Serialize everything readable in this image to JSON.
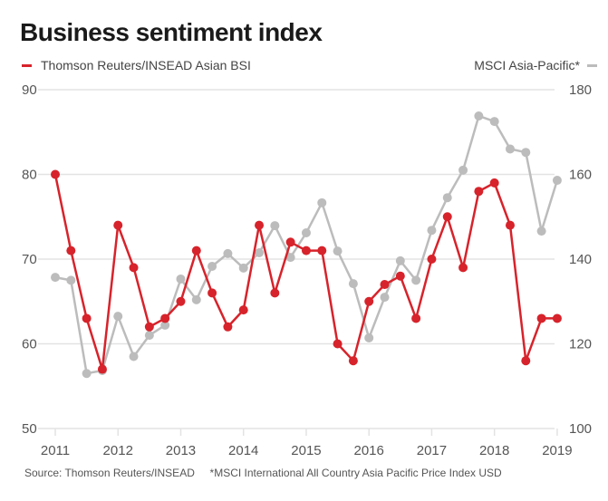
{
  "title": "Business sentiment index",
  "legend": {
    "left": {
      "label": "Thomson Reuters/INSEAD Asian BSI",
      "color": "#d7232b"
    },
    "right": {
      "label": "MSCI Asia-Pacific*",
      "color": "#bcbcbc"
    }
  },
  "footer": {
    "source": "Source: Thomson Reuters/INSEAD",
    "note": "*MSCI International All Country Asia Pacific Price Index USD"
  },
  "chart_data": {
    "type": "line",
    "title": "Business sentiment index",
    "xlabel": "",
    "ylabel_left": "Thomson Reuters/INSEAD Asian BSI",
    "ylabel_right": "MSCI Asia-Pacific*",
    "x_ticks": [
      "2011",
      "2012",
      "2013",
      "2014",
      "2015",
      "2016",
      "2017",
      "2018",
      "2019"
    ],
    "x": [
      "2011Q1",
      "2011Q2",
      "2011Q3",
      "2011Q4",
      "2012Q1",
      "2012Q2",
      "2012Q3",
      "2012Q4",
      "2013Q1",
      "2013Q2",
      "2013Q3",
      "2013Q4",
      "2014Q1",
      "2014Q2",
      "2014Q3",
      "2014Q4",
      "2015Q1",
      "2015Q2",
      "2015Q3",
      "2015Q4",
      "2016Q1",
      "2016Q2",
      "2016Q3",
      "2016Q4",
      "2017Q1",
      "2017Q2",
      "2017Q3",
      "2017Q4",
      "2018Q1",
      "2018Q2",
      "2018Q3",
      "2018Q4",
      "2019Q1"
    ],
    "ylim_left": [
      50,
      90
    ],
    "yticks_left": [
      50,
      60,
      70,
      80,
      90
    ],
    "ylim_right": [
      100,
      180
    ],
    "yticks_right": [
      100,
      120,
      140,
      160,
      180
    ],
    "grid": true,
    "legend": "top",
    "series": [
      {
        "name": "Thomson Reuters/INSEAD Asian BSI",
        "axis": "left",
        "color": "#d7232b",
        "values": [
          80,
          71,
          63,
          57,
          74,
          69,
          62,
          63,
          65,
          71,
          66,
          62,
          64,
          74,
          66,
          72,
          71,
          71,
          60,
          58,
          65,
          67,
          68,
          63,
          70,
          75,
          69,
          78,
          79,
          74,
          58,
          63,
          63
        ]
      },
      {
        "name": "MSCI Asia-Pacific*",
        "axis": "right",
        "color": "#bcbcbc",
        "values": [
          135.7,
          135,
          113,
          113.7,
          126.5,
          117,
          122,
          124.4,
          135.3,
          130.4,
          138.3,
          141.3,
          137.9,
          141.5,
          147.9,
          140.4,
          146.2,
          153.3,
          141.9,
          134.2,
          121.4,
          131,
          139.6,
          135,
          146.8,
          154.5,
          161,
          173.8,
          172.5,
          166,
          165.2,
          146.6,
          158.6
        ]
      }
    ]
  }
}
